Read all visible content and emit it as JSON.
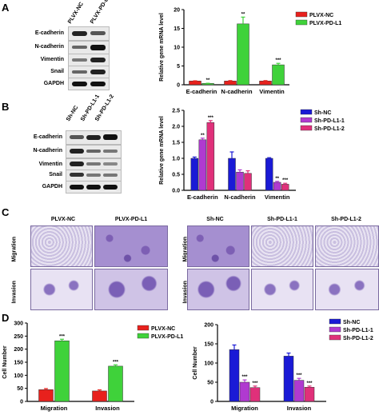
{
  "panels": {
    "A": "A",
    "B": "B",
    "C": "C",
    "D": "D"
  },
  "blotA": {
    "lanes": [
      "PLVX-NC",
      "PLVX-PD-L1"
    ],
    "rows": [
      "E-cadherin",
      "N-cadherin",
      "Vimentin",
      "Snail",
      "GAPDH"
    ]
  },
  "blotB": {
    "lanes": [
      "Sh-NC",
      "Sh-PD-L1-1",
      "Sh-PD-L1-2"
    ],
    "rows": [
      "E-cadherin",
      "N-cadherin",
      "Vimentin",
      "Snail",
      "GAPDH"
    ]
  },
  "micro": {
    "left_titles": [
      "PLVX-NC",
      "PLVX-PD-L1"
    ],
    "right_titles": [
      "Sh-NC",
      "Sh-PD-L1-1",
      "Sh-PD-L1-2"
    ],
    "rows": [
      "Migration",
      "Invasion"
    ]
  },
  "chart_data": [
    {
      "type": "bar",
      "panel": "A",
      "categories": [
        "E-cadherin",
        "N-cadherin",
        "Vimentin"
      ],
      "series": [
        {
          "name": "PLVX-NC",
          "values": [
            1.0,
            1.0,
            1.0
          ],
          "color": "#e8211d"
        },
        {
          "name": "PLVX-PD-L1",
          "values": [
            0.35,
            16.2,
            5.3
          ],
          "color": "#3fd23a"
        }
      ],
      "errors": [
        [
          0.05,
          0.1,
          0.1
        ],
        [
          0.05,
          1.8,
          0.4
        ]
      ],
      "sig": [
        [
          "",
          "",
          ""
        ],
        [
          "**",
          "**",
          "***"
        ]
      ],
      "ylabel": "Relative gene mRNA level",
      "ylim": [
        0,
        20
      ],
      "yticks": [
        0,
        5,
        10,
        15,
        20
      ],
      "legend": "top-right"
    },
    {
      "type": "bar",
      "panel": "B",
      "categories": [
        "E-cadherin",
        "N-cadherin",
        "Vimentin"
      ],
      "series": [
        {
          "name": "Sh-NC",
          "values": [
            1.0,
            1.0,
            1.0
          ],
          "color": "#1a1ad6"
        },
        {
          "name": "Sh-PD-L1-1",
          "values": [
            1.58,
            0.57,
            0.25
          ],
          "color": "#b03ad0"
        },
        {
          "name": "Sh-PD-L1-2",
          "values": [
            2.12,
            0.53,
            0.19
          ],
          "color": "#e0307a"
        }
      ],
      "errors": [
        [
          0.04,
          0.2,
          0.02
        ],
        [
          0.05,
          0.07,
          0.03
        ],
        [
          0.06,
          0.08,
          0.03
        ]
      ],
      "sig": [
        [
          "",
          "",
          ""
        ],
        [
          "**",
          "",
          "**"
        ],
        [
          "***",
          "",
          "***"
        ]
      ],
      "ylabel": "Relative gene mRNA level",
      "ylim": [
        0,
        2.5
      ],
      "yticks": [
        0.0,
        0.5,
        1.0,
        1.5,
        2.0,
        2.5
      ],
      "legend": "top-right"
    },
    {
      "type": "bar",
      "panel": "D-left",
      "categories": [
        "Migration",
        "Invasion"
      ],
      "series": [
        {
          "name": "PLVX-NC",
          "values": [
            45,
            40
          ],
          "color": "#e8211d"
        },
        {
          "name": "PLVX-PD-L1",
          "values": [
            232,
            135
          ],
          "color": "#3fd23a"
        }
      ],
      "errors": [
        [
          4,
          4
        ],
        [
          6,
          5
        ]
      ],
      "sig": [
        [
          "",
          ""
        ],
        [
          "***",
          "***"
        ]
      ],
      "ylabel": "Cell Number",
      "ylim": [
        0,
        300
      ],
      "yticks": [
        0,
        50,
        100,
        150,
        200,
        250,
        300
      ],
      "legend": "top-right"
    },
    {
      "type": "bar",
      "panel": "D-right",
      "categories": [
        "Migration",
        "Invasion"
      ],
      "series": [
        {
          "name": "Sh-NC",
          "values": [
            135,
            118
          ],
          "color": "#1a1ad6"
        },
        {
          "name": "Sh-PD-L1-1",
          "values": [
            50,
            55
          ],
          "color": "#b03ad0"
        },
        {
          "name": "Sh-PD-L1-2",
          "values": [
            36,
            37
          ],
          "color": "#e0307a"
        }
      ],
      "errors": [
        [
          12,
          8
        ],
        [
          6,
          5
        ],
        [
          4,
          3
        ]
      ],
      "sig": [
        [
          "",
          ""
        ],
        [
          "***",
          "***"
        ],
        [
          "***",
          "***"
        ]
      ],
      "ylabel": "Cell Number",
      "ylim": [
        0,
        200
      ],
      "yticks": [
        0,
        50,
        100,
        150,
        200
      ],
      "legend": "top-right"
    }
  ]
}
